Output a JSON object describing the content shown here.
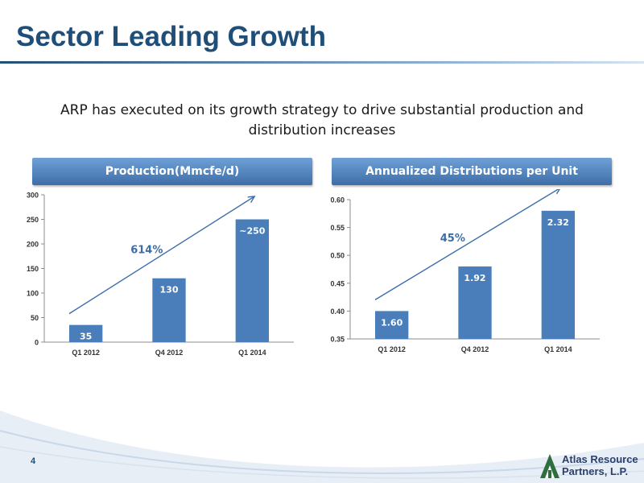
{
  "slide": {
    "title": "Sector Leading Growth",
    "subtitle": "ARP has executed on its growth strategy to drive substantial production and distribution increases",
    "page_number": "4",
    "logo_line1": "Atlas Resource",
    "logo_line2": "Partners, L.P."
  },
  "colors": {
    "title": "#1f4e79",
    "bar": "#4a7ebb",
    "annotation": "#3a6ea8"
  },
  "chart_data": [
    {
      "type": "bar",
      "title": "Production(Mmcfe/d)",
      "categories": [
        "Q1 2012",
        "Q4 2012",
        "Q1 2014"
      ],
      "values": [
        35,
        130,
        250
      ],
      "data_labels": [
        "35",
        "130",
        "~250"
      ],
      "ylim": [
        0,
        300
      ],
      "yticks": [
        "0",
        "50",
        "100",
        "150",
        "200",
        "250",
        "300"
      ],
      "ytick_values": [
        0,
        50,
        100,
        150,
        200,
        250,
        300
      ],
      "annotation": "614%",
      "grid": false
    },
    {
      "type": "bar",
      "title": "Annualized Distributions per Unit",
      "categories": [
        "Q1 2012",
        "Q4 2012",
        "Q1 2014"
      ],
      "values": [
        0.4,
        0.48,
        0.58
      ],
      "data_labels": [
        "1.60",
        "1.92",
        "2.32"
      ],
      "ylim": [
        0.35,
        0.6
      ],
      "yticks": [
        "0.35",
        "0.40",
        "0.45",
        "0.50",
        "0.55",
        "0.60"
      ],
      "ytick_values": [
        0.35,
        0.4,
        0.45,
        0.5,
        0.55,
        0.6
      ],
      "annotation": "45%",
      "grid": false
    }
  ]
}
